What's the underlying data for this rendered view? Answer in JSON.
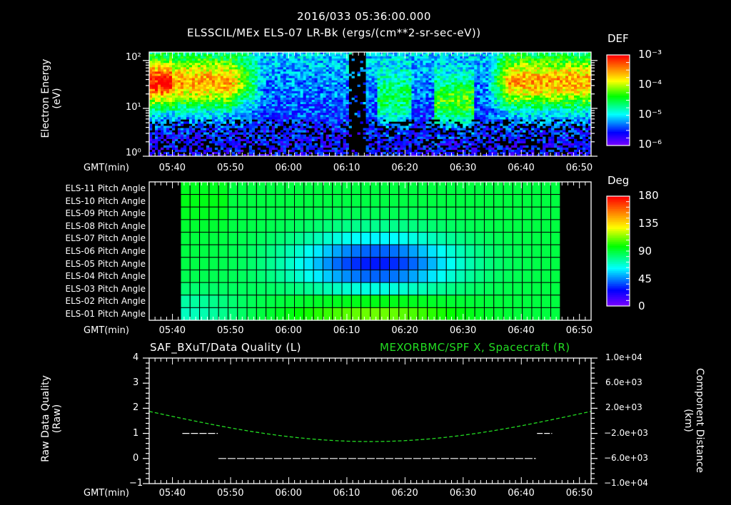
{
  "header": {
    "datetime": "2016/033 05:36:00.000",
    "subtitle": "ELSSCIL/MEx ELS-07 LR-Bk  (ergs/(cm**2-sr-sec-eV))"
  },
  "panel1": {
    "ylabel_line1": "Electron Energy",
    "ylabel_line2": "(eV)",
    "yticks": [
      "10⁰",
      "10¹",
      "10²"
    ],
    "xlabel": "GMT(min)",
    "colorbar": {
      "title": "DEF",
      "ticks": [
        "10⁻³",
        "10⁻⁴",
        "10⁻⁵",
        "10⁻⁶"
      ]
    }
  },
  "panel2": {
    "rows": [
      "ELS-11 Pitch Angle",
      "ELS-10 Pitch Angle",
      "ELS-09 Pitch Angle",
      "ELS-08 Pitch Angle",
      "ELS-07 Pitch Angle",
      "ELS-06 Pitch Angle",
      "ELS-05 Pitch Angle",
      "ELS-04 Pitch Angle",
      "ELS-03 Pitch Angle",
      "ELS-02 Pitch Angle",
      "ELS-01 Pitch Angle"
    ],
    "xlabel": "GMT(min)",
    "colorbar": {
      "title": "Deg",
      "ticks": [
        "180",
        "135",
        "90",
        "45",
        "0"
      ]
    }
  },
  "panel3": {
    "title_left": "SAF_BXuT/Data Quality (L)",
    "title_right": "MEXORBMC/SPF X, Spacecraft (R)",
    "ylabel_left_line1": "Raw Data Quality",
    "ylabel_left_line2": "(Raw)",
    "ylabel_right_line1": "Component Distance",
    "ylabel_right_line2": "(km)",
    "yticks_left": [
      "4",
      "3",
      "2",
      "1",
      "0",
      "−1"
    ],
    "yticks_right": [
      "1.0e+04",
      "6.0e+03",
      "2.0e+03",
      "−2.0e+03",
      "−6.0e+03",
      "−1.0e+04"
    ],
    "xlabel": "GMT(min)"
  },
  "xticks": [
    "05:40",
    "05:50",
    "06:00",
    "06:10",
    "06:20",
    "06:30",
    "06:40",
    "06:50"
  ],
  "colors": {
    "background": "#000000",
    "axes": "#ffffff",
    "spacecraft_line": "#22dd22"
  },
  "chart_data": [
    {
      "type": "heatmap",
      "title": "ELSSCIL/MEx ELS-07 LR-Bk (ergs/(cm**2-sr-sec-eV))",
      "xlabel": "GMT(min)",
      "ylabel": "Electron Energy (eV)",
      "x_range": [
        "05:36",
        "06:52"
      ],
      "ylim": [
        1,
        150
      ],
      "yscale": "log",
      "colorbar": {
        "label": "DEF",
        "range": [
          1e-06,
          0.001
        ],
        "scale": "log"
      },
      "description": "High flux (~1e-4 to 3e-4) at 10-60 eV before 05:56 and after 06:40; intermediate enhancements near 06:27-06:33; data gap near 06:10-06:13"
    },
    {
      "type": "heatmap",
      "title": "Pitch Angle",
      "xlabel": "GMT(min)",
      "ylabel": "ELS-01..ELS-11",
      "x_range": [
        "05:36",
        "06:52"
      ],
      "data_x_range": [
        "05:41",
        "06:46"
      ],
      "colorbar": {
        "label": "Deg",
        "range": [
          0,
          180
        ]
      },
      "description": "Minimum ~30 deg centered on ELS-07/ELS-08 near 06:12-06:18; ~100-120 deg on ELS-01 mid-interval; ~90 deg at edges"
    },
    {
      "type": "line",
      "title": "SAF_BXuT/Data Quality (L) ; MEXORBMC/SPF X, Spacecraft (R)",
      "xlabel": "GMT(min)",
      "ylabel_left": "Raw Data Quality (Raw)",
      "ylabel_right": "Component Distance (km)",
      "ylim_left": [
        -1,
        4
      ],
      "ylim_right": [
        -10000,
        10000
      ],
      "series": [
        {
          "name": "Data Quality (L)",
          "x": [
            "05:41",
            "05:48",
            "05:49",
            "06:43",
            "06:43",
            "06:46"
          ],
          "values": [
            1,
            1,
            0,
            0,
            1,
            1
          ]
        },
        {
          "name": "SPF X Spacecraft (R)",
          "x": [
            "05:36",
            "05:46",
            "05:56",
            "06:06",
            "06:16",
            "06:26",
            "06:36",
            "06:46",
            "06:52"
          ],
          "values": [
            1400,
            -300,
            -1900,
            -3000,
            -3300,
            -2700,
            -1300,
            300,
            1500
          ]
        }
      ]
    }
  ]
}
